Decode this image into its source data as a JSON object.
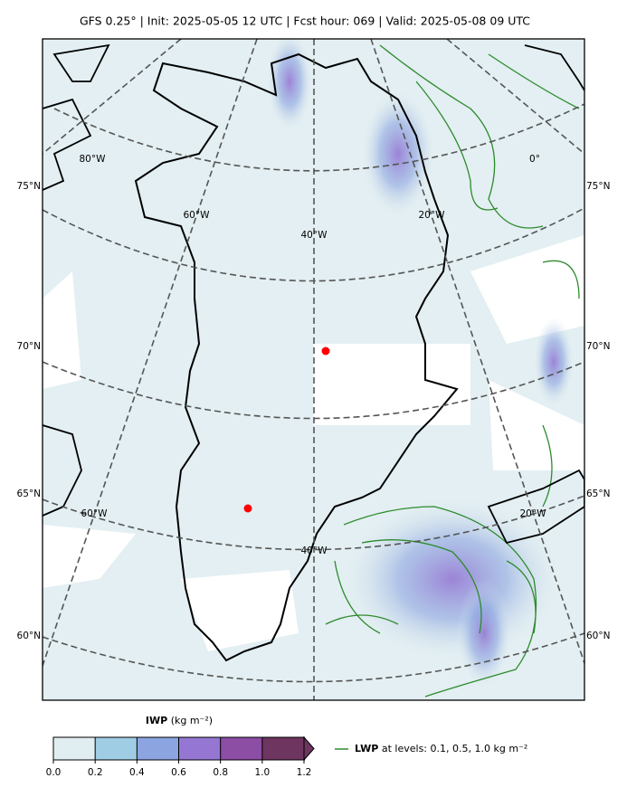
{
  "title": "GFS 0.25° | Init: 2025-05-05 12 UTC | Fcst hour: 069 | Valid: 2025-05-08 09 UTC",
  "lat_labels": [
    "75°N",
    "70°N",
    "65°N",
    "60°N"
  ],
  "lon_labels": [
    "80°W",
    "60°W",
    "40°W",
    "20°W",
    "0°",
    "60°W",
    "40°W",
    "20°W"
  ],
  "colorbar": {
    "title": "IWP",
    "units": "(kg m⁻²)",
    "ticks": [
      {
        "value": 0,
        "label": "0.0"
      },
      {
        "value": 0.2,
        "label": "0.2"
      },
      {
        "value": 0.4,
        "label": "0.4"
      },
      {
        "value": 0.6,
        "label": "0.6"
      },
      {
        "value": 0.8,
        "label": "0.8"
      },
      {
        "value": 1.0,
        "label": "1.0"
      },
      {
        "value": 1.2,
        "label": "1.2"
      }
    ],
    "colors": [
      "#e1eef1",
      "#9fcde3",
      "#8ca5e0",
      "#9577d3",
      "#8c4da5",
      "#6e3560"
    ]
  },
  "legend": {
    "name": "LWP",
    "text": "at levels: 0.1, 0.5, 1.0  kg m⁻²",
    "color": "#2e8b2e"
  }
}
